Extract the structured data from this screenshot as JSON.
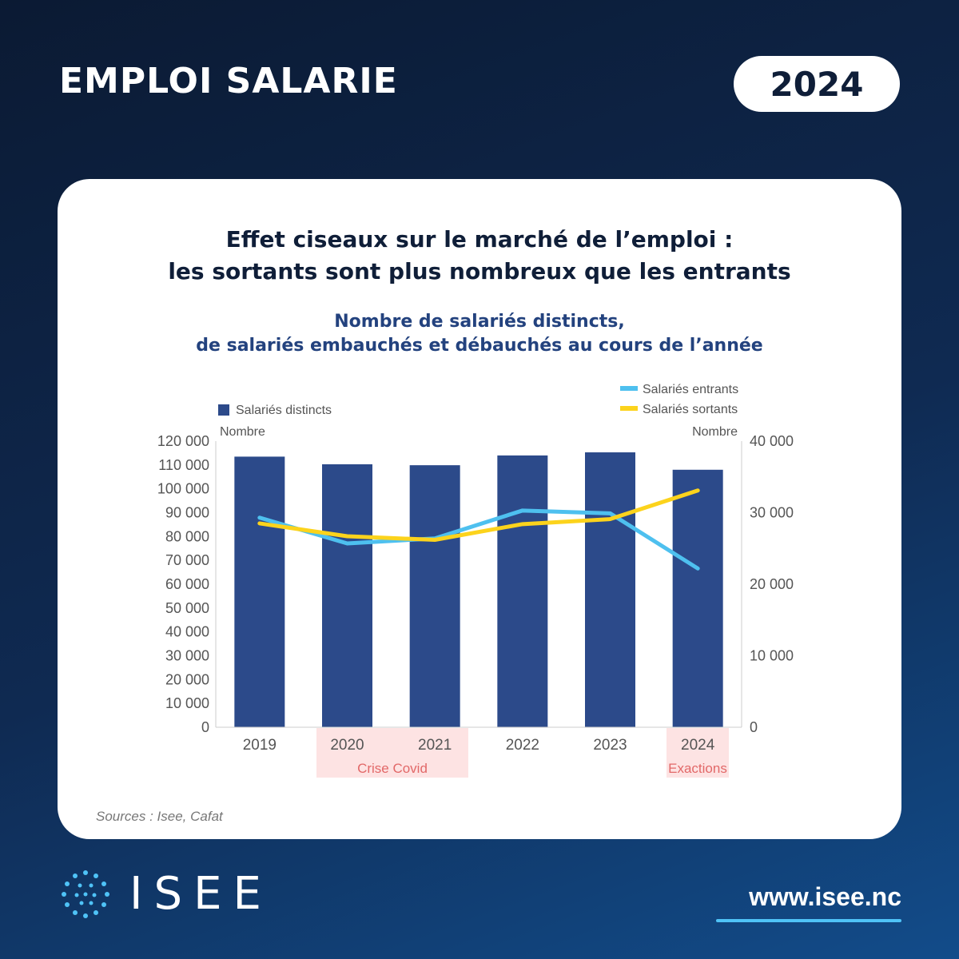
{
  "header": {
    "title": "EMPLOI SALARIE",
    "year": "2024"
  },
  "card": {
    "title_line1": "Effet ciseaux sur le marché de l’emploi :",
    "title_line2": "les sortants sont plus nombreux que les entrants",
    "subtitle_line1": "Nombre de salariés distincts,",
    "subtitle_line2": "de salariés embauchés et débauchés au cours de l’année",
    "source": "Sources : Isee, Cafat"
  },
  "colors": {
    "bar": "#2c4a8a",
    "entrants": "#4ec0ef",
    "sortants": "#fcd31c",
    "axis_text": "#555555",
    "highlight_bg": "#fde3e3",
    "highlight_text": "#e26868"
  },
  "chart_data": {
    "type": "bar+line",
    "categories": [
      "2019",
      "2020",
      "2021",
      "2022",
      "2023",
      "2024"
    ],
    "bar_series": {
      "name": "Salariés distincts",
      "axis": "left",
      "values": [
        113500,
        110300,
        109900,
        114000,
        115300,
        108000
      ]
    },
    "line_series": [
      {
        "name": "Salariés entrants",
        "axis": "right",
        "values": [
          29300,
          25700,
          26400,
          30300,
          29900,
          22200
        ]
      },
      {
        "name": "Salariés sortants",
        "axis": "right",
        "values": [
          28500,
          26700,
          26200,
          28400,
          29100,
          33100
        ]
      }
    ],
    "left_axis": {
      "label": "Nombre",
      "range": [
        0,
        120000
      ],
      "ticks": [
        "0",
        "10 000",
        "20 000",
        "30 000",
        "40 000",
        "50 000",
        "60 000",
        "70 000",
        "80 000",
        "90 000",
        "100 000",
        "110 000",
        "120 000"
      ]
    },
    "right_axis": {
      "label": "Nombre",
      "range": [
        0,
        40000
      ],
      "ticks": [
        "0",
        "10 000",
        "20 000",
        "30 000",
        "40 000"
      ]
    },
    "annotations": [
      {
        "text": "Crise Covid",
        "from": "2020",
        "to": "2021"
      },
      {
        "text": "Exactions",
        "from": "2024",
        "to": "2024"
      }
    ],
    "legend": {
      "bar_label": "Salariés distincts",
      "line1_label": "Salariés entrants",
      "line2_label": "Salariés sortants"
    }
  },
  "footer": {
    "logo_text": "ISEE",
    "website": "www.isee.nc"
  }
}
